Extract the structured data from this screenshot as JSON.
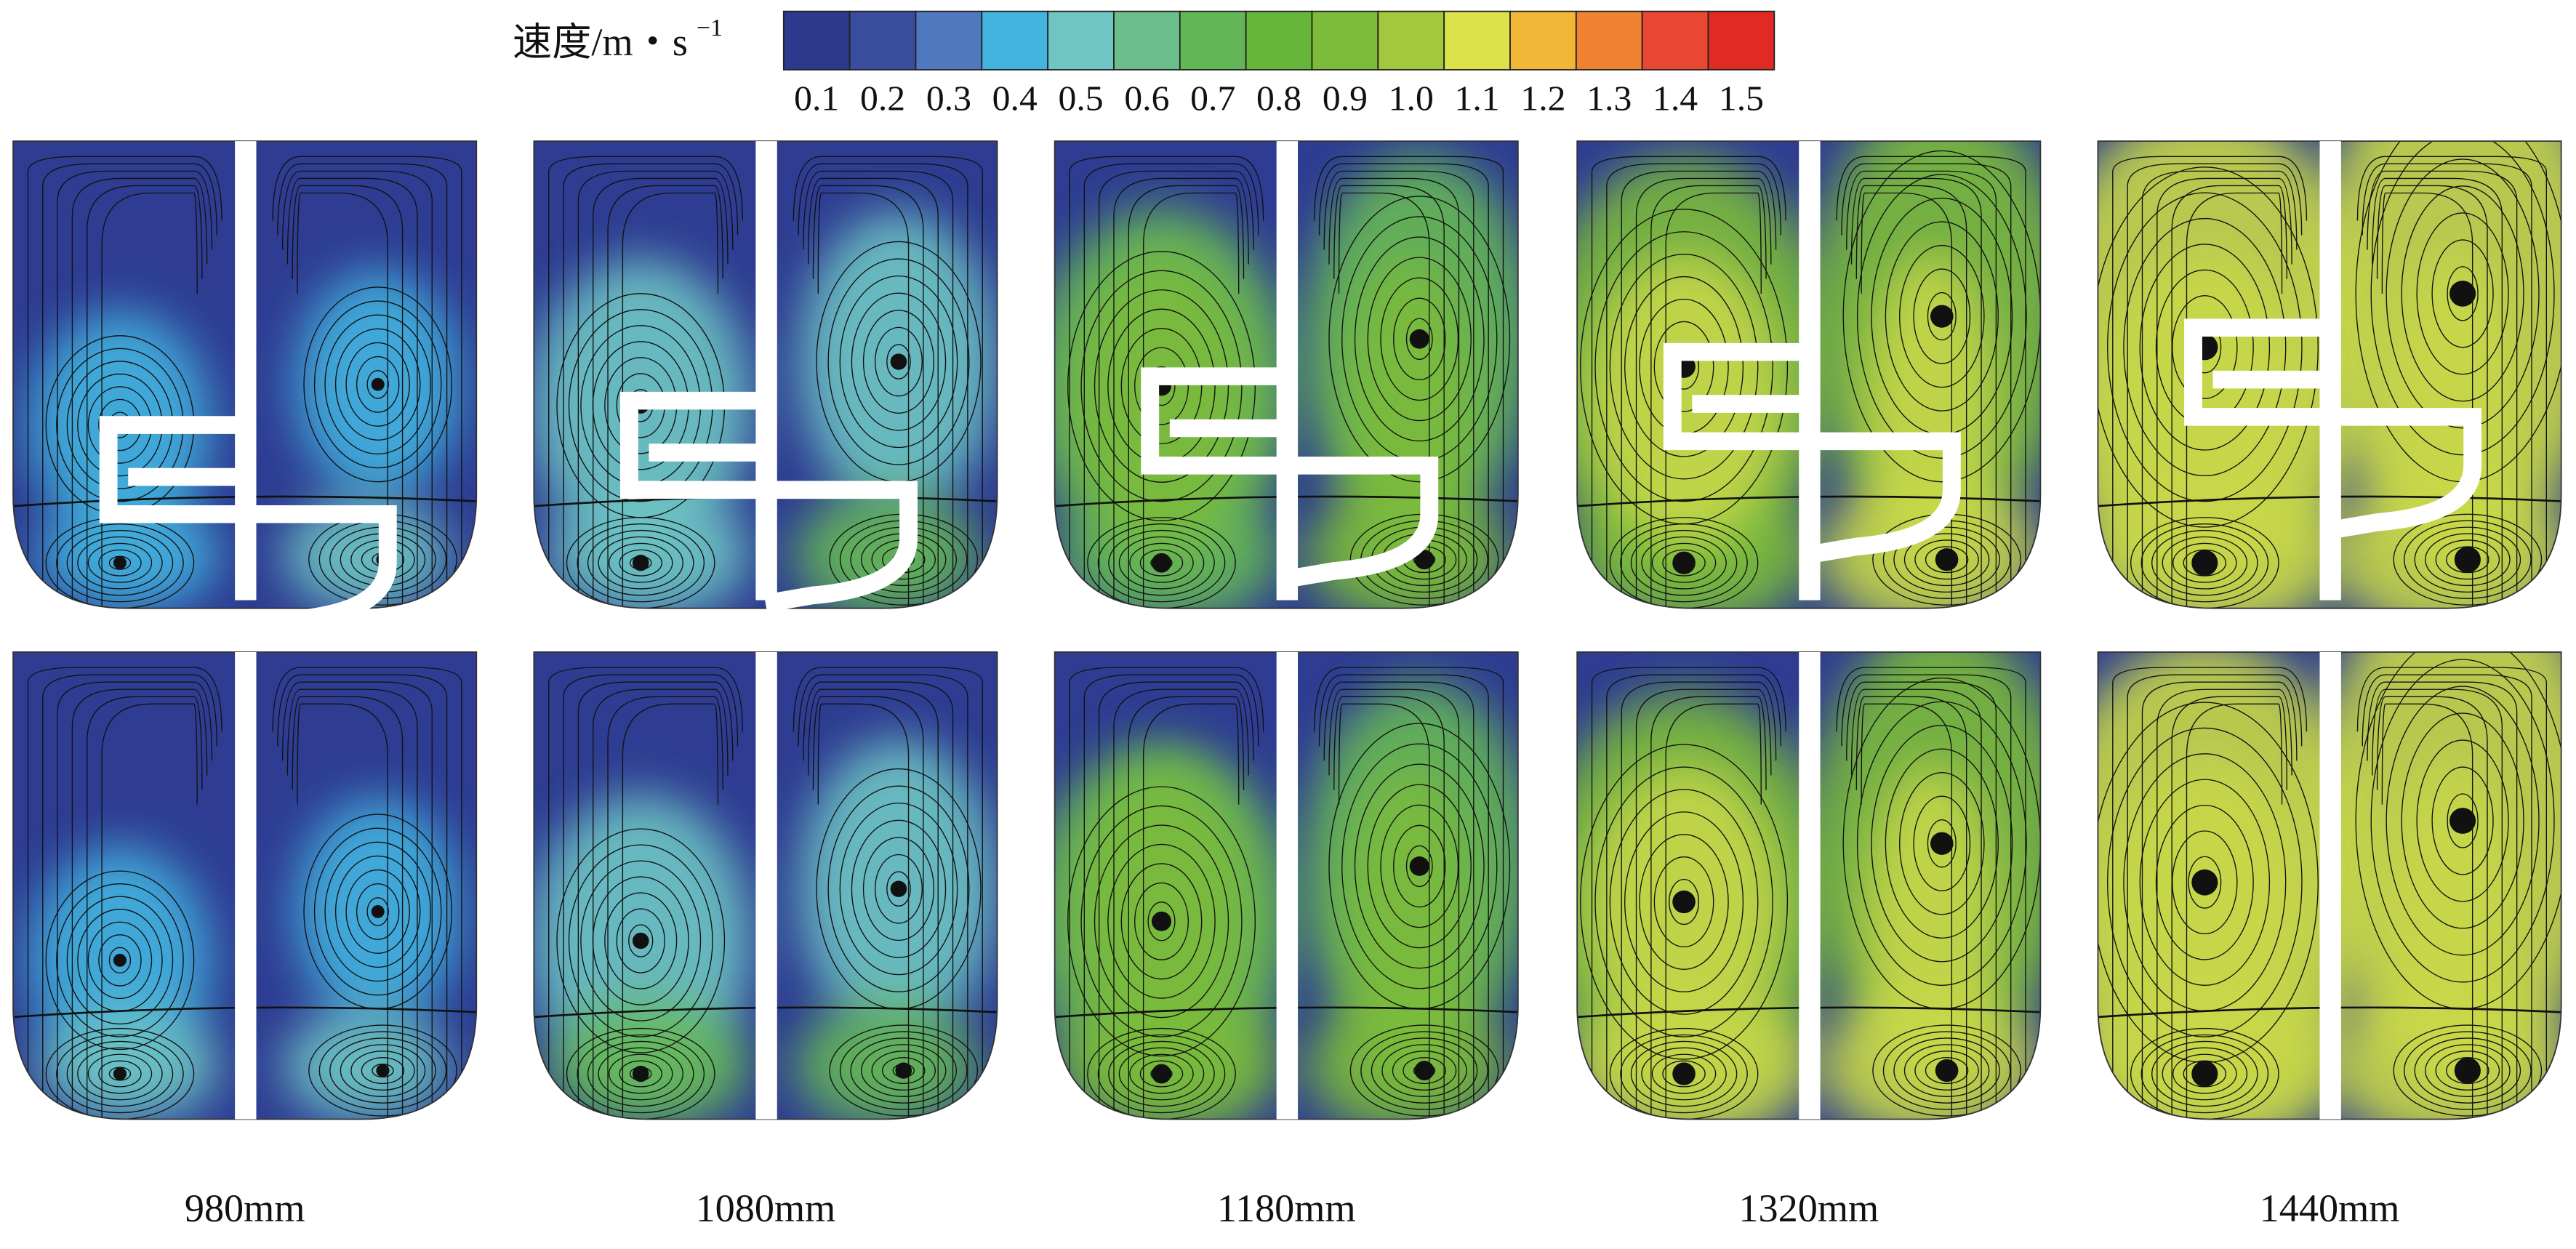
{
  "colorbar": {
    "label": "速度/m・s",
    "exponent": "−1",
    "ticks": [
      "0.1",
      "0.2",
      "0.3",
      "0.4",
      "0.5",
      "0.6",
      "0.7",
      "0.8",
      "0.9",
      "1.0",
      "1.1",
      "1.2",
      "1.3",
      "1.4",
      "1.5"
    ],
    "colors": [
      "#2c3a8e",
      "#3a4c9e",
      "#4f78bf",
      "#43b4e0",
      "#6ec6c4",
      "#6cbf8a",
      "#62b656",
      "#66b63c",
      "#7cbc3a",
      "#a2c83e",
      "#dce24a",
      "#f2b636",
      "#ef8230",
      "#e84832",
      "#e22a24"
    ]
  },
  "panels": [
    {
      "label": "980mm"
    },
    {
      "label": "1080mm"
    },
    {
      "label": "1180mm"
    },
    {
      "label": "1320mm"
    },
    {
      "label": "1440mm"
    }
  ]
}
